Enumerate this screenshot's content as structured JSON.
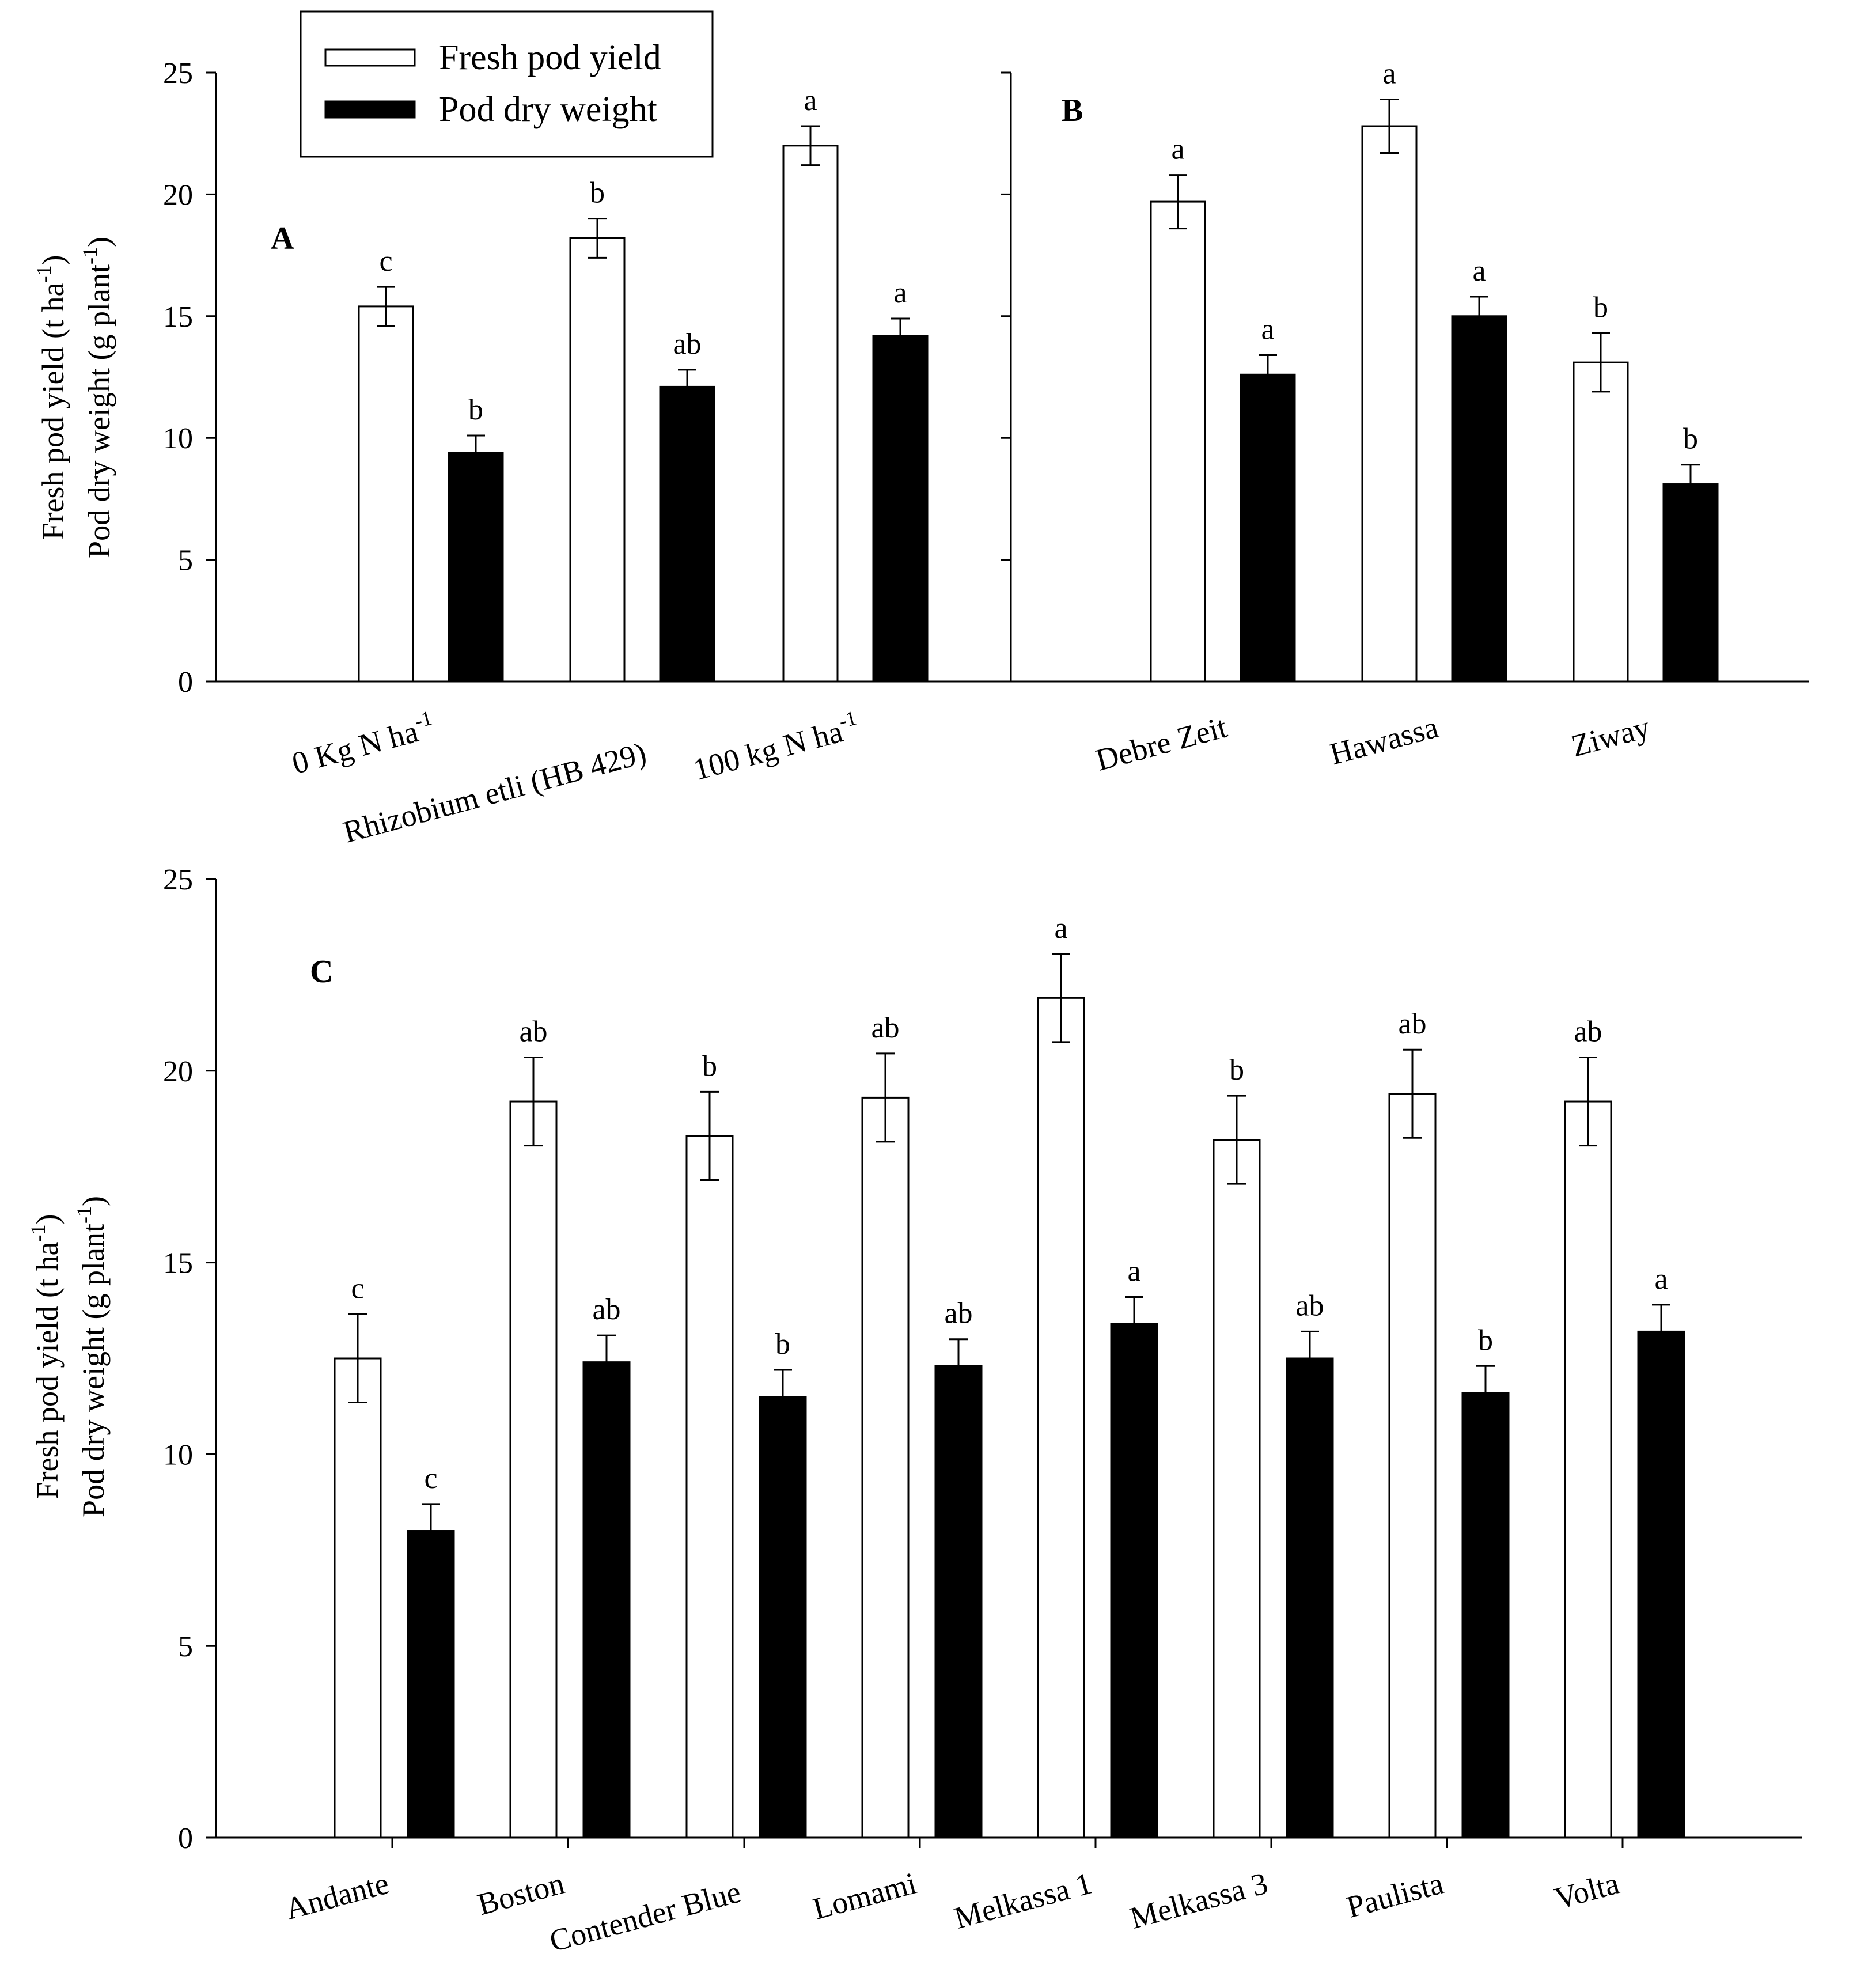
{
  "legend": {
    "entries": [
      {
        "label": "Fresh pod yield",
        "color": "#ffffff"
      },
      {
        "label": "Pod dry weight",
        "color": "#000000"
      }
    ]
  },
  "y_axis_label": {
    "line1": "Fresh pod yield (t ha",
    "line1_sup": "-1",
    "line1_end": ")",
    "line2": "Pod dry weight (g plant",
    "line2_sup": "-1",
    "line2_end": ")"
  },
  "chart_data": [
    {
      "type": "bar",
      "panel": "A",
      "ylim": [
        0,
        25
      ],
      "yticks": [
        0,
        5,
        10,
        15,
        20,
        25
      ],
      "categories": [
        {
          "text": "0 Kg N ha",
          "sup": "-1"
        },
        {
          "text": "Rhizobium etli (HB 429)",
          "sup": ""
        },
        {
          "text": "100 kg N ha",
          "sup": "-1"
        }
      ],
      "series": [
        {
          "name": "Fresh pod yield",
          "color": "#ffffff",
          "values": [
            15.4,
            18.2,
            22.0
          ],
          "errors": [
            0.8,
            0.8,
            0.8
          ],
          "letters": [
            "c",
            "b",
            "a"
          ]
        },
        {
          "name": "Pod dry weight",
          "color": "#000000",
          "values": [
            9.4,
            12.1,
            14.2
          ],
          "errors": [
            0.7,
            0.7,
            0.7
          ],
          "letters": [
            "b",
            "ab",
            "a"
          ]
        }
      ]
    },
    {
      "type": "bar",
      "panel": "B",
      "ylim": [
        0,
        25
      ],
      "yticks": [
        0,
        5,
        10,
        15,
        20,
        25
      ],
      "categories": [
        {
          "text": "Debre Zeit",
          "sup": ""
        },
        {
          "text": "Hawassa",
          "sup": ""
        },
        {
          "text": "Ziway",
          "sup": ""
        }
      ],
      "series": [
        {
          "name": "Fresh pod yield",
          "color": "#ffffff",
          "values": [
            19.7,
            22.8,
            13.1
          ],
          "errors": [
            1.1,
            1.1,
            1.2
          ],
          "letters": [
            "a",
            "a",
            "b"
          ]
        },
        {
          "name": "Pod dry weight",
          "color": "#000000",
          "values": [
            12.6,
            15.0,
            8.1
          ],
          "errors": [
            0.8,
            0.8,
            0.8
          ],
          "letters": [
            "a",
            "a",
            "b"
          ]
        }
      ]
    },
    {
      "type": "bar",
      "panel": "C",
      "ylim": [
        0,
        25
      ],
      "yticks": [
        0,
        5,
        10,
        15,
        20,
        25
      ],
      "categories": [
        {
          "text": "Andante",
          "sup": ""
        },
        {
          "text": "Boston",
          "sup": ""
        },
        {
          "text": "Contender Blue",
          "sup": ""
        },
        {
          "text": "Lomami",
          "sup": ""
        },
        {
          "text": "Melkassa 1",
          "sup": ""
        },
        {
          "text": "Melkassa 3",
          "sup": ""
        },
        {
          "text": "Paulista",
          "sup": ""
        },
        {
          "text": "Volta",
          "sup": ""
        }
      ],
      "series": [
        {
          "name": "Fresh pod yield",
          "color": "#ffffff",
          "values": [
            12.5,
            19.2,
            18.3,
            19.3,
            21.9,
            18.2,
            19.4,
            19.2
          ],
          "errors": [
            1.15,
            1.15,
            1.15,
            1.15,
            1.15,
            1.15,
            1.15,
            1.15
          ],
          "letters": [
            "c",
            "ab",
            "b",
            "ab",
            "a",
            "b",
            "ab",
            "ab"
          ]
        },
        {
          "name": "Pod dry weight",
          "color": "#000000",
          "values": [
            8.0,
            12.4,
            11.5,
            12.3,
            13.4,
            12.5,
            11.6,
            13.2
          ],
          "errors": [
            0.7,
            0.7,
            0.7,
            0.7,
            0.7,
            0.7,
            0.7,
            0.7
          ],
          "letters": [
            "c",
            "ab",
            "b",
            "ab",
            "a",
            "ab",
            "b",
            "a"
          ]
        }
      ]
    }
  ]
}
